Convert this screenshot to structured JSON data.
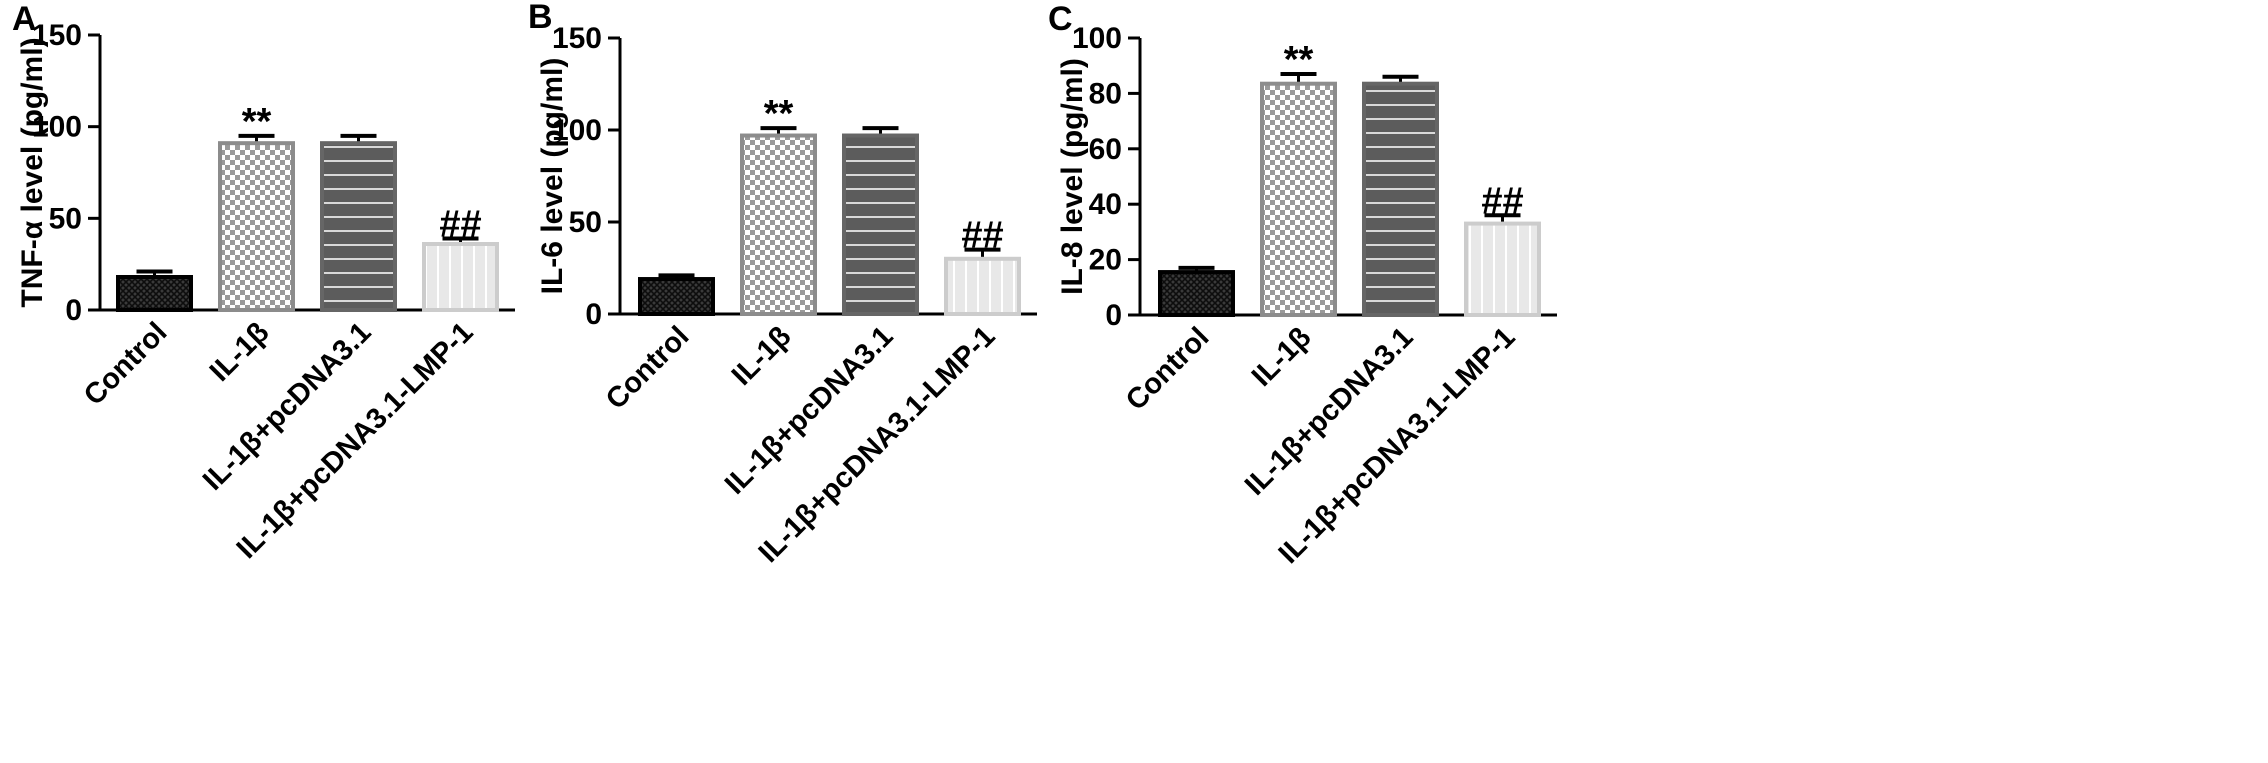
{
  "chart_data": [
    {
      "type": "bar",
      "panel_label": "A",
      "categories": [
        "Control",
        "IL-1β",
        "IL-1β+pcDNA3.1",
        "IL-1β+pcDNA3.1-LMP-1"
      ],
      "values": [
        18,
        91,
        91,
        36
      ],
      "errors": [
        3,
        4,
        4,
        3
      ],
      "annotations": [
        "",
        "**",
        "",
        "##"
      ],
      "ylabel": "TNF-α level (pg/ml)",
      "ylim": [
        0,
        150
      ],
      "yticks": [
        0,
        50,
        100,
        150
      ],
      "yticklabels": [
        "0",
        "50",
        "100",
        "150"
      ]
    },
    {
      "type": "bar",
      "panel_label": "B",
      "categories": [
        "Control",
        "IL-1β",
        "IL-1β+pcDNA3.1",
        "IL-1β+pcDNA3.1-LMP-1"
      ],
      "values": [
        19,
        97,
        97,
        30
      ],
      "errors": [
        2,
        4,
        4,
        5
      ],
      "annotations": [
        "",
        "**",
        "",
        "##"
      ],
      "ylabel": "IL-6 level (pg/ml)",
      "ylim": [
        0,
        150
      ],
      "yticks": [
        0,
        50,
        100,
        150
      ],
      "yticklabels": [
        "0",
        "50",
        "100",
        "150"
      ]
    },
    {
      "type": "bar",
      "panel_label": "C",
      "categories": [
        "Control",
        "IL-1β",
        "IL-1β+pcDNA3.1",
        "IL-1β+pcDNA3.1-LMP-1"
      ],
      "values": [
        15.5,
        83.5,
        83.5,
        33
      ],
      "errors": [
        1.5,
        3.5,
        2.5,
        3
      ],
      "annotations": [
        "",
        "**",
        "",
        "##"
      ],
      "ylabel": "IL-8 level (pg/ml)",
      "ylim": [
        0,
        100
      ],
      "yticks": [
        0,
        20,
        40,
        60,
        80,
        100
      ],
      "yticklabels": [
        "0",
        "20",
        "40",
        "60",
        "80",
        "100"
      ]
    }
  ],
  "colors": {
    "bar_fills": [
      "#2a2a2a",
      "#ffffff",
      "#5a5a5a",
      "#e6e6e6"
    ],
    "bar_strokes": [
      "#000000",
      "#8c8c8c",
      "#666666",
      "#cccccc"
    ],
    "axis": "#000000"
  },
  "patterns": [
    "crosshatch-dark",
    "checker",
    "horizontal-stripes",
    "vertical-stripes"
  ]
}
